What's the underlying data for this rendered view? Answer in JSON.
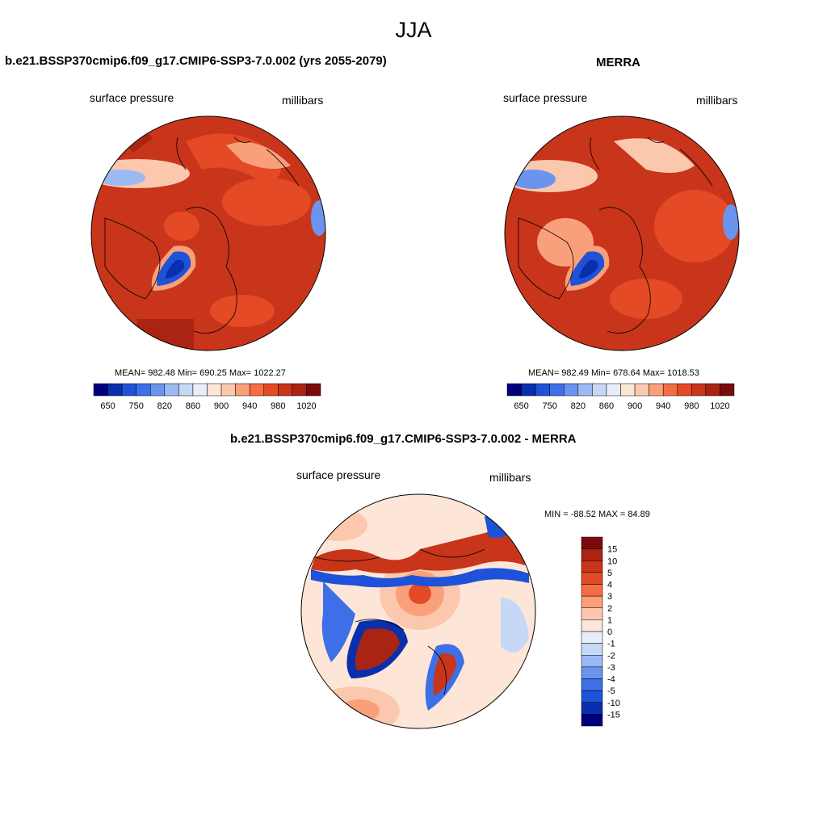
{
  "figure": {
    "title": "JJA",
    "diff_title": "b.e21.BSSP370cmip6.f09_g17.CMIP6-SSP3-7.0.002 - MERRA"
  },
  "panels": [
    {
      "title": "b.e21.BSSP370cmip6.f09_g17.CMIP6-SSP3-7.0.002 (yrs 2055-2079)",
      "left_label": "surface pressure",
      "right_label": "millibars",
      "stats": "MEAN= 982.48  Min= 690.25  Max= 1022.27"
    },
    {
      "title": "MERRA",
      "left_label": "surface pressure",
      "right_label": "millibars",
      "stats": "MEAN= 982.49  Min= 678.64  Max= 1018.53"
    },
    {
      "left_label": "surface pressure",
      "right_label": "millibars",
      "stats": "MIN = -88.52 MAX =  84.89"
    }
  ],
  "chart_data": [
    {
      "type": "heatmap",
      "projection": "north polar stereographic",
      "title": "b.e21.BSSP370cmip6.f09_g17.CMIP6-SSP3-7.0.002 (yrs 2055-2079)",
      "variable": "surface pressure",
      "units": "millibars",
      "mean": 982.48,
      "min": 690.25,
      "max": 1022.27,
      "colorbar": {
        "orientation": "horizontal",
        "tick_labels": [
          "650",
          "750",
          "820",
          "860",
          "900",
          "940",
          "980",
          "1020"
        ],
        "colors": [
          "#00007f",
          "#0a2fad",
          "#1f52d8",
          "#3d6fe8",
          "#6b94ee",
          "#9cb9f3",
          "#c6d8f6",
          "#e7eefa",
          "#fde6d8",
          "#fcc8ad",
          "#f9a07a",
          "#f46d43",
          "#e34a25",
          "#c8351a",
          "#a92413",
          "#7b0a0a"
        ]
      }
    },
    {
      "type": "heatmap",
      "projection": "north polar stereographic",
      "title": "MERRA",
      "variable": "surface pressure",
      "units": "millibars",
      "mean": 982.49,
      "min": 678.64,
      "max": 1018.53,
      "colorbar": {
        "orientation": "horizontal",
        "tick_labels": [
          "650",
          "750",
          "820",
          "860",
          "900",
          "940",
          "980",
          "1020"
        ],
        "colors": [
          "#00007f",
          "#0a2fad",
          "#1f52d8",
          "#3d6fe8",
          "#6b94ee",
          "#9cb9f3",
          "#c6d8f6",
          "#e7eefa",
          "#fde6d8",
          "#fcc8ad",
          "#f9a07a",
          "#f46d43",
          "#e34a25",
          "#c8351a",
          "#a92413",
          "#7b0a0a"
        ]
      }
    },
    {
      "type": "heatmap",
      "projection": "north polar stereographic",
      "title": "b.e21.BSSP370cmip6.f09_g17.CMIP6-SSP3-7.0.002 - MERRA",
      "variable": "surface pressure",
      "units": "millibars",
      "min": -88.52,
      "max": 84.89,
      "colorbar": {
        "orientation": "vertical",
        "tick_labels": [
          "15",
          "10",
          "5",
          "4",
          "3",
          "2",
          "1",
          "0",
          "-1",
          "-2",
          "-3",
          "-4",
          "-5",
          "-10",
          "-15"
        ],
        "colors": [
          "#7b0a0a",
          "#a92413",
          "#c8351a",
          "#e34a25",
          "#f46d43",
          "#f9a07a",
          "#fcc8ad",
          "#fde6d8",
          "#e7eefa",
          "#c6d8f6",
          "#9cb9f3",
          "#6b94ee",
          "#3d6fe8",
          "#1f52d8",
          "#0a2fad",
          "#00007f"
        ]
      }
    }
  ]
}
